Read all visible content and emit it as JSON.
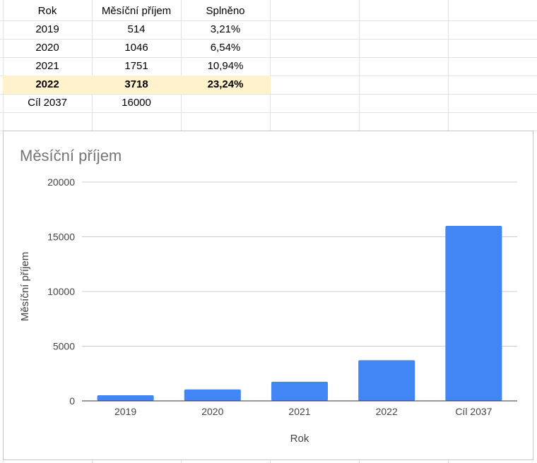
{
  "table": {
    "headers": [
      "Rok",
      "Měsíční příjem",
      "Splněno"
    ],
    "rows": [
      [
        "2019",
        "514",
        "3,21%"
      ],
      [
        "2020",
        "1046",
        "6,54%"
      ],
      [
        "2021",
        "1751",
        "10,94%"
      ],
      [
        "2022",
        "3718",
        "23,24%"
      ],
      [
        "Cíl 2037",
        "16000",
        ""
      ]
    ],
    "highlight_color": "#fff2cc"
  },
  "chart_data": {
    "type": "bar",
    "title": "Měsíční příjem",
    "xlabel": "Rok",
    "ylabel": "Měsíční příjem",
    "categories": [
      "2019",
      "2020",
      "2021",
      "2022",
      "Cíl 2037"
    ],
    "values": [
      514,
      1046,
      1751,
      3718,
      16000
    ],
    "ylim": [
      0,
      20000
    ],
    "yticks": [
      "0",
      "5000",
      "10000",
      "15000",
      "20000"
    ],
    "bar_color": "#4285f4",
    "grid": true,
    "legend": "none"
  }
}
